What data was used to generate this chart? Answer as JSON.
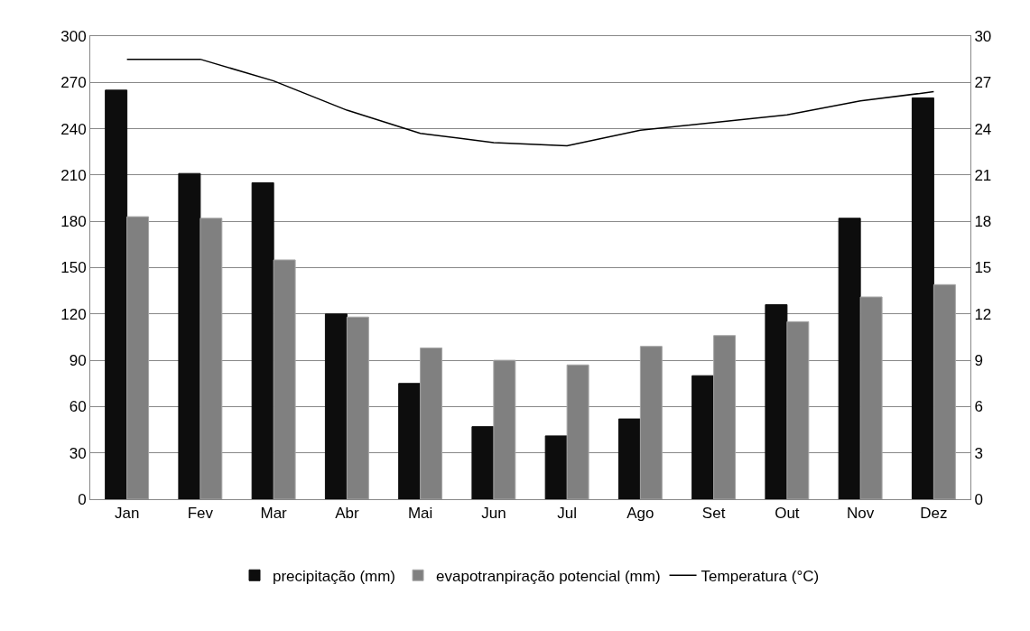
{
  "chart_data": {
    "type": "bar",
    "categories": [
      "Jan",
      "Fev",
      "Mar",
      "Abr",
      "Mai",
      "Jun",
      "Jul",
      "Ago",
      "Set",
      "Out",
      "Nov",
      "Dez"
    ],
    "series": [
      {
        "name": "precipitação (mm)",
        "color": "#0d0d0d",
        "values": [
          265,
          211,
          205,
          120,
          75,
          47,
          41,
          52,
          80,
          126,
          182,
          260
        ]
      },
      {
        "name": "evapotranpiração potencial (mm)",
        "color": "#808080",
        "values": [
          183,
          182,
          155,
          118,
          98,
          90,
          87,
          99,
          106,
          115,
          131,
          139
        ]
      },
      {
        "name": "Temperatura (°C)",
        "type": "line",
        "axis": "y2",
        "color": "#000000",
        "marker": "none",
        "values": [
          28.5,
          28.5,
          27.1,
          25.2,
          23.7,
          23.1,
          22.9,
          23.9,
          24.4,
          24.9,
          25.8,
          26.4
        ]
      }
    ],
    "ylim": [
      0,
      300
    ],
    "yticks": [
      0,
      30,
      60,
      90,
      120,
      150,
      180,
      210,
      240,
      270,
      300
    ],
    "y2lim": [
      0,
      30
    ],
    "y2ticks": [
      0,
      3,
      6,
      9,
      12,
      15,
      18,
      21,
      24,
      27,
      30
    ],
    "grid": "y",
    "legend": "bottom"
  }
}
